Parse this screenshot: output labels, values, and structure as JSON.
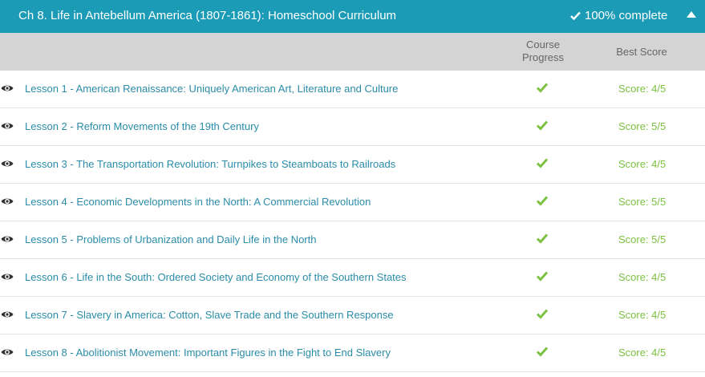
{
  "chapter": {
    "title": "Ch 8. Life in Antebellum America (1807-1861): Homeschool Curriculum",
    "complete_label": "100% complete"
  },
  "columns": {
    "progress_label_line1": "Course",
    "progress_label_line2": "Progress",
    "score_label": "Best Score"
  },
  "colors": {
    "header": "#1b9bb5",
    "link": "#2a8ca8",
    "score": "#7cc142",
    "check": "#7cc142"
  },
  "lessons": [
    {
      "title": "Lesson 1 - American Renaissance: Uniquely American Art, Literature and Culture",
      "score": "Score: 4/5"
    },
    {
      "title": "Lesson 2 - Reform Movements of the 19th Century",
      "score": "Score: 5/5"
    },
    {
      "title": "Lesson 3 - The Transportation Revolution: Turnpikes to Steamboats to Railroads",
      "score": "Score: 4/5"
    },
    {
      "title": "Lesson 4 - Economic Developments in the North: A Commercial Revolution",
      "score": "Score: 5/5"
    },
    {
      "title": "Lesson 5 - Problems of Urbanization and Daily Life in the North",
      "score": "Score: 5/5"
    },
    {
      "title": "Lesson 6 - Life in the South: Ordered Society and Economy of the Southern States",
      "score": "Score: 4/5"
    },
    {
      "title": "Lesson 7 - Slavery in America: Cotton, Slave Trade and the Southern Response",
      "score": "Score: 4/5"
    },
    {
      "title": "Lesson 8 - Abolitionist Movement: Important Figures in the Fight to End Slavery",
      "score": "Score: 4/5"
    }
  ]
}
